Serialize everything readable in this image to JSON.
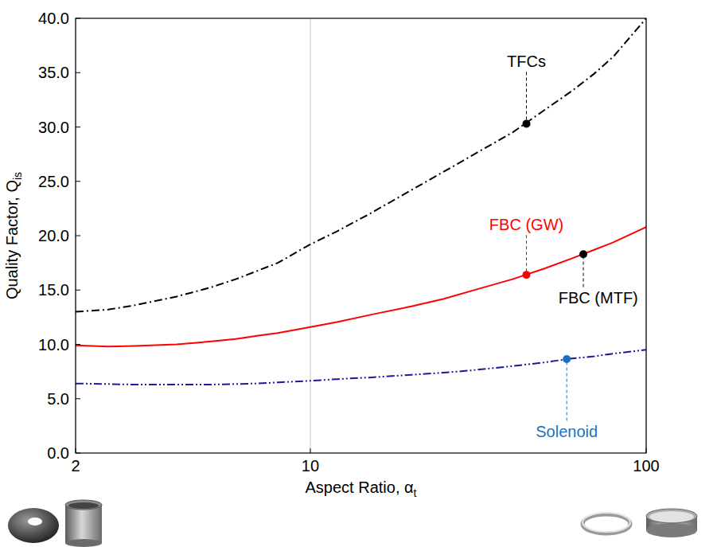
{
  "chart_data": {
    "type": "line",
    "xlabel": "Aspect Ratio, α",
    "xlabel_sub": "t",
    "ylabel": "Quality Factor, Q",
    "ylabel_sub": "is",
    "log": "x",
    "grid": true,
    "xlim": [
      2,
      100
    ],
    "xticks": [
      2,
      10,
      100
    ],
    "ylim": [
      0,
      40
    ],
    "yticks": [
      {
        "value": 0,
        "label": "0.0"
      },
      {
        "value": 5,
        "label": "5.0"
      },
      {
        "value": 10,
        "label": "10.0"
      },
      {
        "value": 15,
        "label": "15.0"
      },
      {
        "value": 20,
        "label": "20.0"
      },
      {
        "value": 25,
        "label": "25.0"
      },
      {
        "value": 30,
        "label": "30.0"
      },
      {
        "value": 35,
        "label": "35.0"
      },
      {
        "value": 40,
        "label": "40.0"
      }
    ],
    "x": [
      2,
      2.5,
      3,
      4,
      5,
      6,
      7,
      8,
      10,
      12,
      15,
      20,
      25,
      30,
      40,
      50,
      60,
      70,
      80,
      100
    ],
    "series": [
      {
        "name": "TFCs",
        "color": "#000000",
        "line_style": "dashdot",
        "values": [
          13.0,
          13.2,
          13.6,
          14.4,
          15.2,
          16.0,
          16.8,
          17.5,
          19.2,
          20.4,
          22.0,
          24.2,
          25.9,
          27.3,
          29.5,
          31.6,
          33.3,
          34.9,
          36.5,
          40.0
        ]
      },
      {
        "name": "FBC (GW)",
        "color": "#ff0000",
        "line_style": "solid",
        "values": [
          9.9,
          9.8,
          9.85,
          10.0,
          10.25,
          10.5,
          10.8,
          11.05,
          11.6,
          12.05,
          12.7,
          13.5,
          14.2,
          14.9,
          16.0,
          17.0,
          17.9,
          18.7,
          19.4,
          20.8
        ]
      },
      {
        "name": "Solenoid",
        "color": "#1a1a9a",
        "line_style": "dashdotdot",
        "values": [
          6.4,
          6.35,
          6.3,
          6.3,
          6.3,
          6.35,
          6.4,
          6.5,
          6.65,
          6.8,
          6.95,
          7.2,
          7.4,
          7.6,
          8.0,
          8.35,
          8.7,
          8.9,
          9.15,
          9.5
        ]
      }
    ],
    "annotations": [
      {
        "series": 0,
        "color": "#000000",
        "x": 44,
        "y": 30.3,
        "label_x": 44,
        "label_y": 35.5
      },
      {
        "series": 1,
        "color": "#ff0000",
        "x": 44,
        "y": 16.4,
        "label_x": 44,
        "label_y": 20.5
      },
      {
        "text": "FBC (MTF)",
        "color": "#000000",
        "x": 65,
        "y": 18.3,
        "label_x": 72,
        "label_y": 13.8
      },
      {
        "series": 2,
        "color": "#1f6fc0",
        "x": 58,
        "y": 8.65,
        "label_x": 58,
        "label_y": 1.5
      }
    ]
  }
}
